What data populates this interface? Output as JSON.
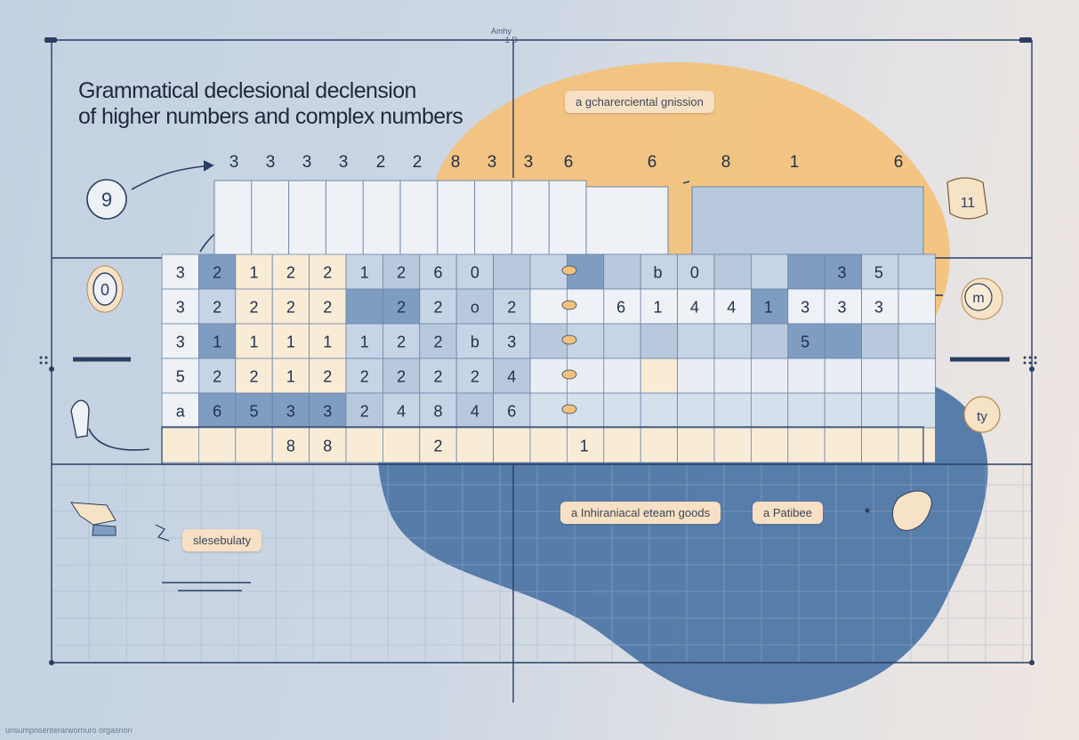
{
  "title": {
    "line1": "Grammatical declesional declension",
    "line2": "of higher numbers and complex numbers"
  },
  "axis_label": "Amhy",
  "axis_label_sub": "1 D",
  "tags": {
    "top": "a  gcharerciental gnission",
    "bottom_left": "a  Inhiraniacal eteam goods",
    "bottom_right": "a  Patibee",
    "left": "slesebulaty"
  },
  "top_numbers": [
    "3",
    "3",
    "3",
    "3",
    "2",
    "2",
    "8",
    "3",
    "3",
    "6",
    "6",
    "8",
    "1",
    "6"
  ],
  "table_rows": [
    [
      "3",
      "2",
      "1",
      "2",
      "2",
      "1",
      "2",
      "6",
      "0",
      "",
      "",
      "",
      "b",
      "0",
      "",
      "",
      "",
      "3",
      "5"
    ],
    [
      "3",
      "2",
      "2",
      "2",
      "2",
      "",
      "2",
      "2",
      "o",
      "2",
      "",
      "6",
      "1",
      "4",
      "4",
      "1",
      "3",
      "3",
      "3"
    ],
    [
      "3",
      "1",
      "1",
      "1",
      "1",
      "1",
      "2",
      "2",
      "b",
      "3",
      "",
      "",
      "",
      "",
      "",
      "",
      "5",
      "",
      ""
    ],
    [
      "5",
      "2",
      "2",
      "1",
      "2",
      "2",
      "2",
      "2",
      "2",
      "4",
      "",
      "",
      "",
      "",
      "",
      "",
      "",
      "",
      ""
    ],
    [
      "a",
      "6",
      "5",
      "3",
      "3",
      "2",
      "4",
      "8",
      "4",
      "6",
      "",
      "",
      "",
      "",
      "",
      "",
      "",
      "",
      ""
    ],
    [
      "",
      "",
      "",
      "8",
      "8",
      "",
      "",
      "2",
      "",
      "",
      "1",
      "",
      "",
      "",
      "",
      "",
      "",
      "",
      ""
    ]
  ],
  "circles": {
    "left_top": "9",
    "left_mid": "0",
    "right_top": "11",
    "right_mid": "m",
    "right_low": "ty"
  },
  "caption": "unsumpnsenterarwornuro orgasnon",
  "colors": {
    "navy": "#2a3f63",
    "blue_blob": "#4f77a6",
    "orange_blob": "#f3c27c",
    "cell_light": "#eef1f6",
    "cell_cream": "#f9ecd7",
    "cell_mid": "#b9c9dd",
    "cell_dark": "#7f9cc1"
  },
  "icons": [
    "arrow-icon",
    "snail-icon",
    "pointer-icon",
    "glove-icon",
    "sparkle-icon",
    "ear-icon"
  ]
}
